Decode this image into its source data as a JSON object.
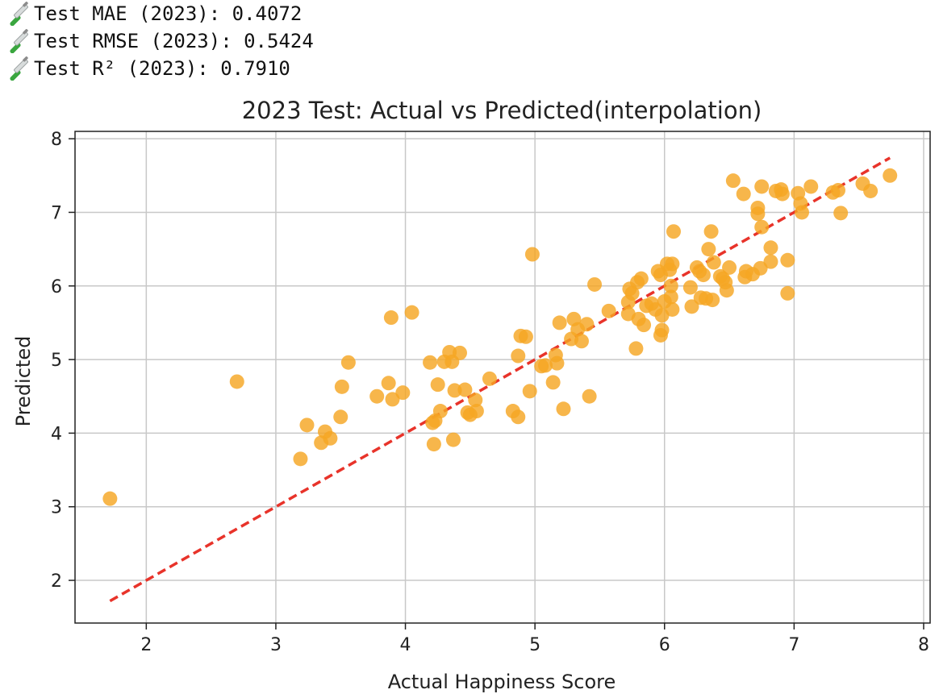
{
  "metrics": [
    {
      "icon": "test-tube-icon",
      "label": "Test MAE (2023): ",
      "value": "0.4072"
    },
    {
      "icon": "test-tube-icon",
      "label": "Test RMSE (2023): ",
      "value": "0.5424"
    },
    {
      "icon": "test-tube-icon",
      "label": "Test R² (2023): ",
      "value": "0.7910"
    }
  ],
  "colors": {
    "points": "#f5a623",
    "ideal_line": "#e8332a",
    "grid": "#c8c8c8",
    "axis": "#222222"
  },
  "chart_data": {
    "type": "scatter",
    "title": "2023 Test: Actual vs Predicted(interpolation)",
    "xlabel": "Actual Happiness Score",
    "ylabel": "Predicted",
    "xlim": [
      1.45,
      8.05
    ],
    "ylim": [
      1.42,
      8.1
    ],
    "xticks": [
      2,
      3,
      4,
      5,
      6,
      7,
      8
    ],
    "yticks": [
      2,
      3,
      4,
      5,
      6,
      7,
      8
    ],
    "grid": true,
    "reference_line": {
      "style": "dashed",
      "x": [
        1.72,
        7.74
      ],
      "y": [
        1.72,
        7.74
      ]
    },
    "points": [
      [
        1.72,
        3.11
      ],
      [
        2.7,
        4.7
      ],
      [
        3.19,
        3.65
      ],
      [
        3.24,
        4.11
      ],
      [
        3.35,
        3.87
      ],
      [
        3.38,
        4.02
      ],
      [
        3.42,
        3.93
      ],
      [
        3.5,
        4.22
      ],
      [
        3.51,
        4.63
      ],
      [
        3.56,
        4.96
      ],
      [
        3.78,
        4.5
      ],
      [
        3.87,
        4.68
      ],
      [
        3.89,
        5.57
      ],
      [
        3.9,
        4.46
      ],
      [
        3.98,
        4.55
      ],
      [
        4.05,
        5.64
      ],
      [
        4.19,
        4.96
      ],
      [
        4.21,
        4.14
      ],
      [
        4.22,
        3.85
      ],
      [
        4.23,
        4.17
      ],
      [
        4.25,
        4.66
      ],
      [
        4.27,
        4.3
      ],
      [
        4.3,
        4.97
      ],
      [
        4.34,
        5.1
      ],
      [
        4.36,
        4.97
      ],
      [
        4.37,
        3.91
      ],
      [
        4.38,
        4.58
      ],
      [
        4.42,
        5.09
      ],
      [
        4.46,
        4.59
      ],
      [
        4.48,
        4.28
      ],
      [
        4.5,
        4.25
      ],
      [
        4.54,
        4.45
      ],
      [
        4.55,
        4.3
      ],
      [
        4.65,
        4.74
      ],
      [
        4.83,
        4.3
      ],
      [
        4.87,
        4.22
      ],
      [
        4.87,
        5.05
      ],
      [
        4.89,
        5.32
      ],
      [
        4.93,
        5.31
      ],
      [
        4.96,
        4.57
      ],
      [
        4.98,
        6.43
      ],
      [
        5.05,
        4.91
      ],
      [
        5.08,
        4.92
      ],
      [
        5.14,
        4.69
      ],
      [
        5.16,
        5.06
      ],
      [
        5.17,
        4.95
      ],
      [
        5.19,
        5.5
      ],
      [
        5.22,
        4.33
      ],
      [
        5.28,
        5.28
      ],
      [
        5.3,
        5.55
      ],
      [
        5.33,
        5.41
      ],
      [
        5.36,
        5.25
      ],
      [
        5.4,
        5.48
      ],
      [
        5.42,
        4.5
      ],
      [
        5.46,
        6.02
      ],
      [
        5.57,
        5.66
      ],
      [
        5.72,
        5.78
      ],
      [
        5.72,
        5.62
      ],
      [
        5.73,
        5.96
      ],
      [
        5.75,
        5.9
      ],
      [
        5.78,
        5.15
      ],
      [
        5.79,
        6.05
      ],
      [
        5.8,
        5.55
      ],
      [
        5.82,
        6.1
      ],
      [
        5.84,
        5.47
      ],
      [
        5.86,
        5.73
      ],
      [
        5.9,
        5.76
      ],
      [
        5.93,
        5.68
      ],
      [
        5.95,
        6.2
      ],
      [
        5.97,
        6.15
      ],
      [
        5.97,
        5.33
      ],
      [
        5.98,
        5.4
      ],
      [
        5.98,
        5.6
      ],
      [
        6.0,
        5.79
      ],
      [
        6.02,
        6.3
      ],
      [
        6.04,
        6.22
      ],
      [
        6.05,
        6.0
      ],
      [
        6.05,
        5.85
      ],
      [
        6.06,
        5.68
      ],
      [
        6.06,
        6.3
      ],
      [
        6.07,
        6.74
      ],
      [
        6.2,
        5.98
      ],
      [
        6.21,
        5.72
      ],
      [
        6.25,
        6.25
      ],
      [
        6.27,
        6.2
      ],
      [
        6.28,
        5.84
      ],
      [
        6.3,
        6.15
      ],
      [
        6.32,
        5.83
      ],
      [
        6.34,
        6.5
      ],
      [
        6.36,
        6.74
      ],
      [
        6.37,
        5.81
      ],
      [
        6.38,
        6.32
      ],
      [
        6.43,
        6.13
      ],
      [
        6.45,
        6.1
      ],
      [
        6.47,
        6.05
      ],
      [
        6.48,
        5.94
      ],
      [
        6.5,
        6.25
      ],
      [
        6.53,
        7.43
      ],
      [
        6.61,
        7.25
      ],
      [
        6.62,
        6.12
      ],
      [
        6.63,
        6.2
      ],
      [
        6.68,
        6.16
      ],
      [
        6.72,
        7.06
      ],
      [
        6.72,
        6.98
      ],
      [
        6.74,
        6.24
      ],
      [
        6.75,
        6.8
      ],
      [
        6.75,
        7.35
      ],
      [
        6.82,
        6.33
      ],
      [
        6.82,
        6.52
      ],
      [
        6.86,
        7.29
      ],
      [
        6.9,
        7.31
      ],
      [
        6.91,
        7.25
      ],
      [
        6.95,
        6.35
      ],
      [
        6.95,
        5.9
      ],
      [
        7.03,
        7.26
      ],
      [
        7.05,
        7.12
      ],
      [
        7.06,
        7.0
      ],
      [
        7.13,
        7.35
      ],
      [
        7.3,
        7.27
      ],
      [
        7.34,
        7.3
      ],
      [
        7.36,
        6.99
      ],
      [
        7.53,
        7.39
      ],
      [
        7.59,
        7.29
      ],
      [
        7.74,
        7.5
      ]
    ]
  }
}
